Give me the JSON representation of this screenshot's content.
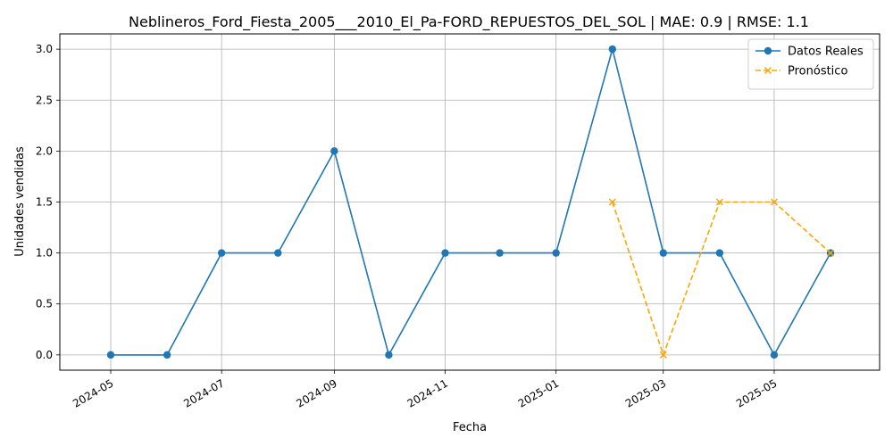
{
  "chart_data": {
    "type": "line",
    "title": "Neblineros_Ford_Fiesta_2005___2010_El_Pa-FORD_REPUESTOS_DEL_SOL | MAE: 0.9 | RMSE: 1.1",
    "xlabel": "Fecha",
    "ylabel": "Unidades vendidas",
    "x_ticks": [
      "2024-05",
      "2024-07",
      "2024-09",
      "2024-11",
      "2025-01",
      "2025-03",
      "2025-05"
    ],
    "y_ticks": [
      "0.0",
      "0.5",
      "1.0",
      "1.5",
      "2.0",
      "2.5",
      "3.0"
    ],
    "ylim": [
      -0.15,
      3.15
    ],
    "xlim": [
      "2024-04-03",
      "2025-06-28"
    ],
    "grid": true,
    "legend_position": "top-right",
    "series": [
      {
        "name": "Datos Reales",
        "color": "#1f77b4",
        "marker": "circle",
        "line_style": "solid",
        "points": [
          {
            "x": "2024-05-01",
            "y": 0
          },
          {
            "x": "2024-06-01",
            "y": 0
          },
          {
            "x": "2024-07-01",
            "y": 1
          },
          {
            "x": "2024-08-01",
            "y": 1
          },
          {
            "x": "2024-09-01",
            "y": 2
          },
          {
            "x": "2024-10-01",
            "y": 0
          },
          {
            "x": "2024-11-01",
            "y": 1
          },
          {
            "x": "2024-12-01",
            "y": 1
          },
          {
            "x": "2025-01-01",
            "y": 1
          },
          {
            "x": "2025-02-01",
            "y": 3
          },
          {
            "x": "2025-03-01",
            "y": 1
          },
          {
            "x": "2025-04-01",
            "y": 1
          },
          {
            "x": "2025-05-01",
            "y": 0
          },
          {
            "x": "2025-06-01",
            "y": 1
          }
        ]
      },
      {
        "name": "Pronóstico",
        "color": "#ffa500",
        "marker": "x",
        "line_style": "dashed",
        "points": [
          {
            "x": "2025-02-01",
            "y": 1.5
          },
          {
            "x": "2025-03-01",
            "y": 0
          },
          {
            "x": "2025-04-01",
            "y": 1.5
          },
          {
            "x": "2025-05-01",
            "y": 1.5
          },
          {
            "x": "2025-06-01",
            "y": 1
          }
        ]
      }
    ]
  }
}
